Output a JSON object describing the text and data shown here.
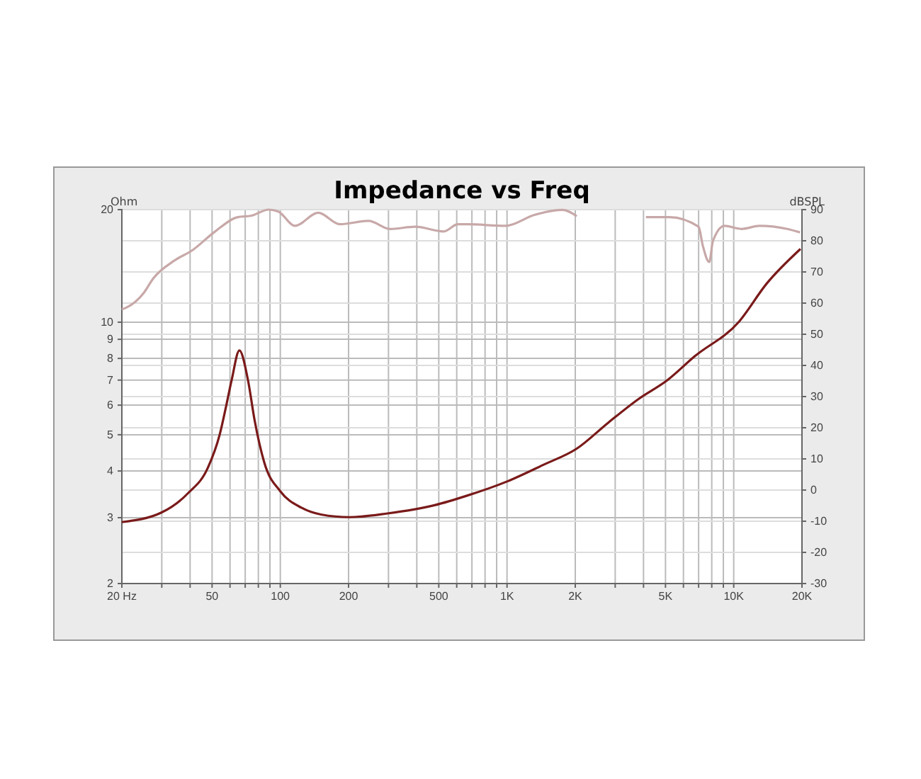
{
  "chart_data": {
    "type": "line",
    "title": "Impedance vs Freq",
    "ylabel": "Ohm",
    "y2label": "dBSPL",
    "log": "xy",
    "grid": true,
    "marker": "none",
    "line_style": "solid",
    "xlim": [
      20,
      20000
    ],
    "ylim": [
      2,
      20
    ],
    "y2lim": [
      -30,
      90
    ],
    "xticks": [
      {
        "value": 20,
        "label": "20 Hz"
      },
      {
        "value": 30,
        "label": null
      },
      {
        "value": 40,
        "label": null
      },
      50,
      {
        "value": 60,
        "label": null
      },
      {
        "value": 70,
        "label": null
      },
      {
        "value": 80,
        "label": null
      },
      {
        "value": 90,
        "label": null
      },
      100,
      200,
      {
        "value": 300,
        "label": null
      },
      {
        "value": 400,
        "label": null
      },
      500,
      {
        "value": 600,
        "label": null
      },
      {
        "value": 700,
        "label": null
      },
      {
        "value": 800,
        "label": null
      },
      {
        "value": 900,
        "label": null
      },
      {
        "value": 1000,
        "label": "1K"
      },
      {
        "value": 2000,
        "label": "2K"
      },
      {
        "value": 3000,
        "label": null
      },
      {
        "value": 4000,
        "label": null
      },
      {
        "value": 5000,
        "label": "5K"
      },
      {
        "value": 6000,
        "label": null
      },
      {
        "value": 7000,
        "label": null
      },
      {
        "value": 8000,
        "label": null
      },
      {
        "value": 9000,
        "label": null
      },
      {
        "value": 10000,
        "label": "10K"
      },
      {
        "value": 20000,
        "label": "20K"
      }
    ],
    "yticks": [
      2,
      3,
      4,
      5,
      6,
      7,
      8,
      9,
      10,
      20
    ],
    "y2ticks": [
      -30,
      -20,
      -10,
      0,
      10,
      20,
      30,
      40,
      50,
      60,
      70,
      80,
      90
    ],
    "series": [
      {
        "color": "#7a1a1a",
        "axis": "y",
        "x": [
          20,
          30,
          39,
          48,
          54,
          58,
          61,
          66,
          72,
          77,
          85,
          100,
          124,
          151,
          202,
          297,
          479,
          670,
          1000,
          1440,
          2030,
          2800,
          3800,
          5100,
          6700,
          10500,
          14000,
          19700
        ],
        "values": [
          2.92,
          3.1,
          3.48,
          4.09,
          5.0,
          6.06,
          7.0,
          8.4,
          7.0,
          5.47,
          4.21,
          3.53,
          3.19,
          3.06,
          3.01,
          3.08,
          3.24,
          3.44,
          3.75,
          4.15,
          4.59,
          5.39,
          6.23,
          7.0,
          8.09,
          10.0,
          12.7,
          15.7
        ]
      },
      {
        "color": "#c8a8a8",
        "axis": "y2",
        "x": [
          20,
          21,
          25,
          27.5,
          34,
          41,
          51,
          65,
          74,
          89,
          98,
          116,
          147,
          183,
          245,
          305,
          394,
          526,
          607,
          670,
          986,
          1320,
          1760,
          2030,
          2200,
          3900,
          4100,
          5200,
          7000,
          7300,
          7800,
          8100,
          9100,
          10800,
          13000,
          17200,
          19600
        ],
        "values": [
          58,
          58.6,
          63.3,
          67.9,
          73.6,
          77,
          82.7,
          87.6,
          88,
          90,
          89.4,
          84.8,
          89,
          85.3,
          86.4,
          83.8,
          84.5,
          83,
          85.3,
          85.3,
          84.8,
          88.3,
          89.9,
          87.9,
          null,
          null,
          87.6,
          87.6,
          84.5,
          78.5,
          73.2,
          80,
          84.8,
          83.8,
          84.8,
          83.8,
          82.7
        ]
      }
    ]
  }
}
